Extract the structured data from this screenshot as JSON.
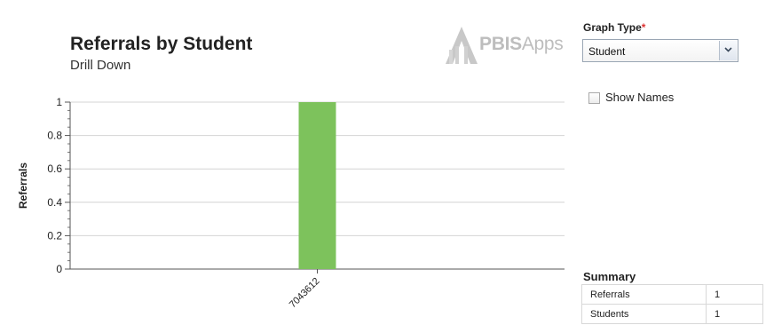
{
  "chart": {
    "title": "Referrals by Student",
    "subtitle": "Drill Down"
  },
  "logo": {
    "bold": "PBIS",
    "light": "Apps"
  },
  "graph_type": {
    "label": "Graph Type",
    "required_mark": "*",
    "selected": "Student"
  },
  "show_names": {
    "label": "Show Names",
    "checked": false
  },
  "summary": {
    "title": "Summary",
    "rows": [
      {
        "label": "Referrals",
        "value": "1"
      },
      {
        "label": "Students",
        "value": "1"
      }
    ]
  },
  "colors": {
    "bar": "#7dc25c",
    "logo": "#c4c4c4"
  },
  "chart_data": {
    "type": "bar",
    "categories": [
      "7043612"
    ],
    "values": [
      1
    ],
    "ylabel": "Referrals",
    "xlabel": "",
    "ylim": [
      0,
      1
    ],
    "yticks": [
      0,
      0.2,
      0.4,
      0.6,
      0.8,
      1
    ],
    "yticks_labels": [
      "0",
      "0.2",
      "0.4",
      "0.6",
      "0.8",
      "1"
    ],
    "grid": true
  }
}
